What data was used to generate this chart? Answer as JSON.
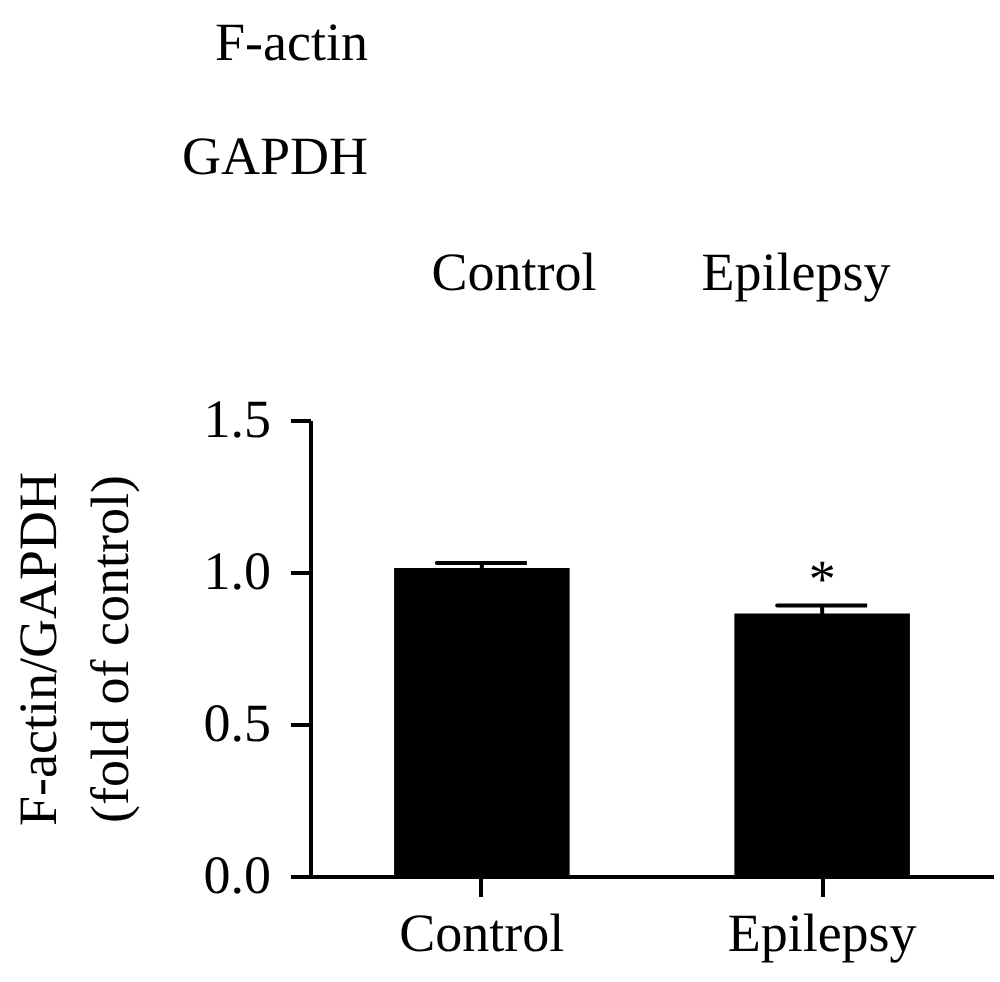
{
  "chart_data": [
    {
      "type": "other",
      "annotations": [
        "F-actin",
        "GAPDH",
        "Control",
        "Epilepsy"
      ]
    },
    {
      "type": "bar",
      "categories": [
        "Control",
        "Epilepsy"
      ],
      "values": [
        1.01,
        0.86
      ],
      "errors": [
        0.02,
        0.03
      ],
      "color": "#000000",
      "ylabel": "F-actin/GAPDH (fold of control)",
      "ylim": [
        0,
        1.5
      ],
      "yticks": [
        {
          "value": 0,
          "label": "0.0"
        },
        {
          "value": 0.5,
          "label": "0.5"
        },
        {
          "value": 1,
          "label": "1.0"
        },
        {
          "value": 1.5,
          "label": "1.5"
        }
      ],
      "annotations": [
        {
          "text": "*",
          "x": "Epilepsy",
          "y": 0.86
        }
      ]
    }
  ]
}
